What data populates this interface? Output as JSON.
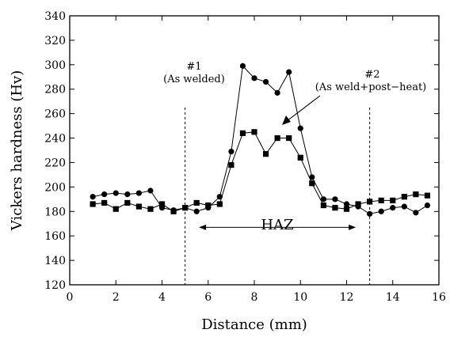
{
  "chart_data": {
    "type": "line",
    "xlabel": "Distance (mm)",
    "ylabel": "Vickers hardness (Hv)",
    "xlim": [
      0,
      16
    ],
    "ylim": [
      120,
      340
    ],
    "xticks": [
      0,
      2,
      4,
      6,
      8,
      10,
      12,
      14,
      16
    ],
    "yticks": [
      120,
      140,
      160,
      180,
      200,
      220,
      240,
      260,
      280,
      300,
      320,
      340
    ],
    "grid": false,
    "series": [
      {
        "marker": "circle",
        "color": "#000000",
        "x": [
          1.0,
          1.5,
          2.0,
          2.5,
          3.0,
          3.5,
          4.0,
          4.5,
          5.0,
          5.5,
          6.0,
          6.5,
          7.0,
          7.5,
          8.0,
          8.5,
          9.0,
          9.5,
          10.0,
          10.5,
          11.0,
          11.5,
          12.0,
          12.5,
          13.0,
          13.5,
          14.0,
          14.5,
          15.0,
          15.5
        ],
        "y": [
          192,
          194,
          195,
          194,
          195,
          197,
          183,
          181,
          183,
          180,
          183,
          192,
          229,
          299,
          289,
          286,
          277,
          294,
          248,
          208,
          190,
          190,
          186,
          184,
          178,
          180,
          183,
          184,
          179,
          185
        ]
      },
      {
        "marker": "square",
        "color": "#000000",
        "x": [
          1.0,
          1.5,
          2.0,
          2.5,
          3.0,
          3.5,
          4.0,
          4.5,
          5.0,
          5.5,
          6.0,
          6.5,
          7.0,
          7.5,
          8.0,
          8.5,
          9.0,
          9.5,
          10.0,
          10.5,
          11.0,
          11.5,
          12.0,
          12.5,
          13.0,
          13.5,
          14.0,
          14.5,
          15.0,
          15.5
        ],
        "y": [
          186,
          187,
          182,
          187,
          184,
          182,
          186,
          180,
          183,
          187,
          185,
          186,
          218,
          244,
          245,
          227,
          240,
          240,
          224,
          203,
          185,
          183,
          182,
          186,
          188,
          189,
          189,
          192,
          194,
          193
        ]
      }
    ],
    "vlines": [
      5.0,
      13.0
    ],
    "haz": {
      "from": 5.6,
      "to": 12.4,
      "y": 167
    },
    "annotations": {
      "label1_line1": "#1",
      "label1_line2": "(As welded)",
      "label2_line1": "#2",
      "label2_line2": "(As weld+post−heat)",
      "haz_label": "HAZ"
    }
  }
}
